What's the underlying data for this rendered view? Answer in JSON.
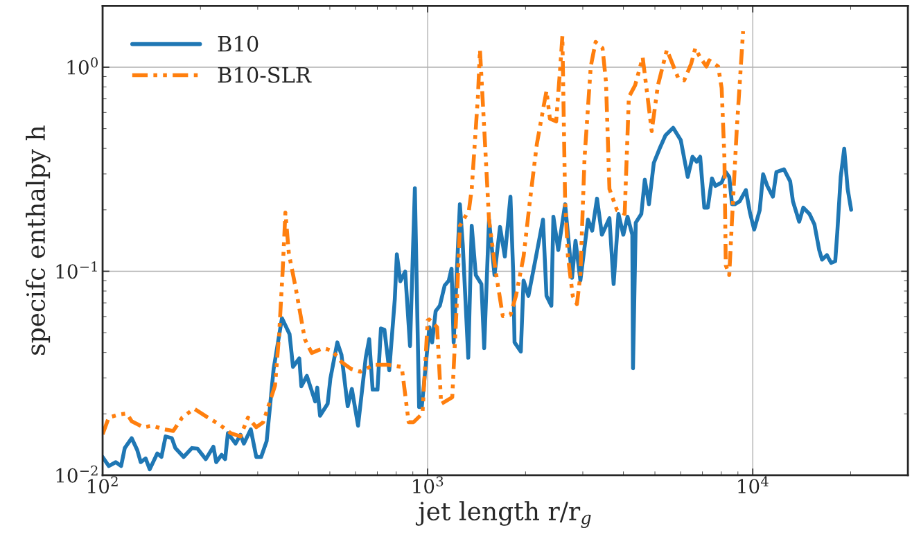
{
  "chart_data": {
    "type": "line",
    "xlabel": "jet length r/r$_{g}$",
    "ylabel": "specifc enthalpy h",
    "log": "xy",
    "xlim": [
      100,
      30000
    ],
    "ylim": [
      0.01,
      2.0
    ],
    "xticks": [
      {
        "value": 100,
        "label": "10$^{2}$"
      },
      {
        "value": 1000,
        "label": "10$^{3}$"
      },
      {
        "value": 10000,
        "label": "10$^{4}$"
      }
    ],
    "yticks": [
      {
        "value": 0.01,
        "label": "10$^{−2}$"
      },
      {
        "value": 0.1,
        "label": "10$^{−1}$"
      },
      {
        "value": 1,
        "label": "10$^{0}$"
      }
    ],
    "grid": true,
    "legend": "top left",
    "series": [
      {
        "name": "B10",
        "color": "#1f77b4",
        "line_style": "solid",
        "x": [
          100,
          104.5,
          109.8,
          114,
          117,
          122.9,
          127.8,
          131,
          135.6,
          139.6,
          147.3,
          151.7,
          156.2,
          163.3,
          167.4,
          177.5,
          188.3,
          195.8,
          207.7,
          219.2,
          223.6,
          232.4,
          238.2,
          242.9,
          256.4,
          265.4,
          272,
          285.6,
          297,
          307.4,
          319.6,
          335.8,
          356.2,
          375.9,
          385.2,
          402.7,
          408.7,
          424.9,
          450.7,
          457.4,
          466.5,
          492.3,
          502,
          527.2,
          543,
          567.5,
          584.4,
          610.7,
          644.8,
          660.7,
          677.1,
          700.8,
          718.1,
          736,
          761.7,
          792.1,
          803.8,
          823.8,
          852.6,
          882.4,
          913.2,
          941,
          959,
          1012,
          1032,
          1058,
          1090,
          1128,
          1161,
          1184,
          1202,
          1256,
          1282,
          1333,
          1366,
          1406,
          1463,
          1492,
          1544,
          1605,
          1669,
          1727,
          1797,
          1832,
          1850,
          1934,
          1972,
          2041,
          2154,
          2263,
          2320,
          2401,
          2436,
          2521,
          2647,
          2780,
          2849,
          2949,
          3112,
          3206,
          3318,
          3435,
          3623,
          3732,
          3862,
          3997,
          4118,
          4260,
          4281,
          4365,
          4541,
          4654,
          4793,
          4960,
          5158,
          5390,
          5689,
          6004,
          6307,
          6526,
          6722,
          6889,
          7095,
          7272,
          7489,
          7674,
          8021,
          8259,
          8465,
          8632,
          8803,
          9110,
          9521,
          9806,
          10100,
          10500,
          10760,
          11080,
          11530,
          11820,
          12470,
          13030,
          13290,
          13890,
          14300,
          14940,
          15470,
          16010,
          16330,
          16900,
          17410,
          17930,
          18200,
          18640,
          19110,
          19580,
          20070
        ],
        "values": [
          0.0123,
          0.0111,
          0.0116,
          0.0111,
          0.0136,
          0.0152,
          0.0133,
          0.0116,
          0.0121,
          0.0107,
          0.0128,
          0.0123,
          0.0155,
          0.0152,
          0.0136,
          0.0123,
          0.0136,
          0.0135,
          0.012,
          0.0138,
          0.0116,
          0.0126,
          0.012,
          0.0161,
          0.0143,
          0.0158,
          0.0143,
          0.0168,
          0.0123,
          0.0123,
          0.0147,
          0.0332,
          0.0589,
          0.0492,
          0.034,
          0.0374,
          0.0273,
          0.0307,
          0.023,
          0.0269,
          0.0196,
          0.0224,
          0.0298,
          0.0448,
          0.0389,
          0.0218,
          0.0265,
          0.0175,
          0.0377,
          0.0465,
          0.0263,
          0.0263,
          0.0524,
          0.0517,
          0.0327,
          0.0728,
          0.121,
          0.0893,
          0.0996,
          0.043,
          0.255,
          0.0216,
          0.0217,
          0.0532,
          0.0448,
          0.0637,
          0.0678,
          0.0852,
          0.09,
          0.103,
          0.0448,
          0.213,
          0.135,
          0.0377,
          0.167,
          0.0958,
          0.0865,
          0.042,
          0.179,
          0.0958,
          0.165,
          0.118,
          0.232,
          0.1,
          0.0448,
          0.0404,
          0.09,
          0.0757,
          0.118,
          0.179,
          0.0757,
          0.0678,
          0.185,
          0.127,
          0.213,
          0.0928,
          0.141,
          0.09,
          0.179,
          0.158,
          0.227,
          0.151,
          0.182,
          0.0865,
          0.191,
          0.151,
          0.185,
          0.151,
          0.0335,
          0.173,
          0.191,
          0.281,
          0.213,
          0.339,
          0.396,
          0.464,
          0.505,
          0.439,
          0.29,
          0.364,
          0.344,
          0.364,
          0.205,
          0.205,
          0.285,
          0.262,
          0.272,
          0.306,
          0.29,
          0.213,
          0.213,
          0.22,
          0.25,
          0.193,
          0.16,
          0.199,
          0.299,
          0.262,
          0.232,
          0.306,
          0.316,
          0.276,
          0.22,
          0.175,
          0.205,
          0.191,
          0.17,
          0.127,
          0.114,
          0.12,
          0.11,
          0.112,
          0.156,
          0.29,
          0.399,
          0.253,
          0.2
        ]
      },
      {
        "name": "B10-SLR",
        "color": "#ff7f0e",
        "line_style": "dashed",
        "x": [
          100,
          104.5,
          113,
          118.7,
          122.9,
          133.6,
          142.3,
          154.7,
          164.9,
          175.8,
          191.1,
          210.8,
          229.1,
          247.7,
          265.4,
          280.1,
          297,
          311.9,
          339.1,
          349.2,
          357.9,
          365,
          374.1,
          392.8,
          418.8,
          439.8,
          478,
          509.4,
          543,
          581.5,
          620,
          683.9,
          754.4,
          832,
          873.8,
          904.2,
          963.8,
          1000,
          1012,
          1069,
          1100,
          1190,
          1226,
          1256,
          1339,
          1366,
          1427,
          1448,
          1492,
          1544,
          1614,
          1702,
          1797,
          1869,
          1972,
          2062,
          2166,
          2274,
          2320,
          2376,
          2484,
          2558,
          2596,
          2647,
          2700,
          2794,
          2877,
          2949,
          3037,
          3174,
          3285,
          3450,
          3535,
          3623,
          3823,
          4036,
          4157,
          4345,
          4585,
          4747,
          4887,
          5107,
          5443,
          5888,
          6152,
          6463,
          6656,
          6889,
          7200,
          7343,
          7826,
          8021,
          8180,
          8259,
          8465,
          8632,
          8933,
          9337
        ],
        "values": [
          0.0159,
          0.0192,
          0.0199,
          0.0201,
          0.0184,
          0.0172,
          0.0175,
          0.0168,
          0.0165,
          0.0192,
          0.0212,
          0.0192,
          0.0177,
          0.0161,
          0.0155,
          0.0192,
          0.0172,
          0.0182,
          0.0275,
          0.0492,
          0.0996,
          0.194,
          0.122,
          0.0825,
          0.0465,
          0.0398,
          0.042,
          0.0407,
          0.0359,
          0.0332,
          0.0322,
          0.0348,
          0.0348,
          0.034,
          0.0182,
          0.0182,
          0.0201,
          0.0575,
          0.058,
          0.0532,
          0.0224,
          0.0241,
          0.0637,
          0.167,
          0.199,
          0.253,
          0.714,
          1.217,
          0.505,
          0.179,
          0.103,
          0.0603,
          0.0612,
          0.0757,
          0.118,
          0.22,
          0.419,
          0.645,
          0.766,
          0.56,
          0.542,
          1.008,
          1.42,
          0.22,
          0.118,
          0.0757,
          0.0689,
          0.0958,
          0.358,
          1.008,
          1.33,
          1.24,
          0.848,
          0.253,
          0.199,
          0.191,
          0.714,
          0.815,
          1.116,
          0.714,
          0.486,
          0.815,
          1.217,
          0.889,
          0.862,
          1.04,
          1.24,
          1.116,
          1.008,
          1.081,
          1.008,
          0.79,
          0.358,
          0.107,
          0.0958,
          0.179,
          0.505,
          1.5
        ]
      }
    ]
  }
}
